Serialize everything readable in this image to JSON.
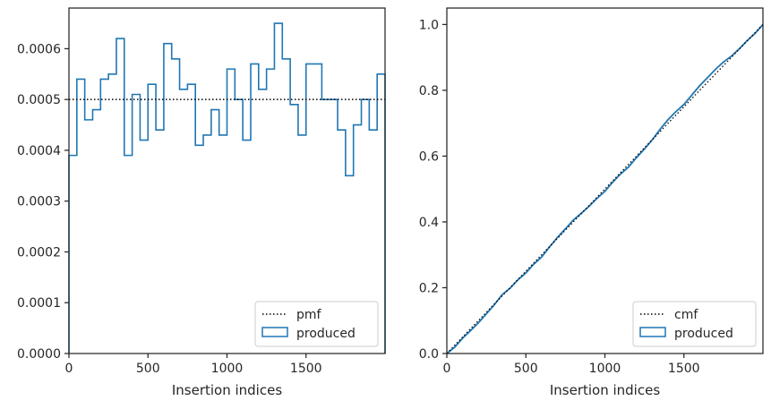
{
  "chart_data": [
    {
      "type": "histogram",
      "xlabel": "Insertion indices",
      "ylabel": "",
      "xlim": [
        0,
        2000
      ],
      "ylim": [
        0,
        0.00068
      ],
      "xticks": [
        0,
        500,
        1000,
        1500
      ],
      "xtick_labels": [
        "0",
        "500",
        "1000",
        "1500"
      ],
      "yticks": [
        0,
        0.0001,
        0.0002,
        0.0003,
        0.0004,
        0.0005,
        0.0006
      ],
      "ytick_labels": [
        "0.0000",
        "0.0001",
        "0.0002",
        "0.0003",
        "0.0004",
        "0.0005",
        "0.0006"
      ],
      "grid": false,
      "legend": {
        "placement": "lower right",
        "entries": [
          {
            "label": "pmf",
            "style": "dotted-line",
            "color": "#000000"
          },
          {
            "label": "produced",
            "style": "step-outline",
            "color": "#1f77b4"
          }
        ]
      },
      "reference_line": {
        "name": "pmf",
        "y": 0.0005
      },
      "series": [
        {
          "name": "produced",
          "color": "#1f77b4",
          "bin_edges": [
            0,
            50,
            100,
            150,
            200,
            250,
            300,
            350,
            400,
            450,
            500,
            550,
            600,
            650,
            700,
            750,
            800,
            850,
            900,
            950,
            1000,
            1050,
            1100,
            1150,
            1200,
            1250,
            1300,
            1350,
            1400,
            1450,
            1500,
            1550,
            1600,
            1650,
            1700,
            1750,
            1800,
            1850,
            1900,
            1950,
            2000
          ],
          "values": [
            0.00039,
            0.00054,
            0.00046,
            0.00048,
            0.00054,
            0.00055,
            0.00062,
            0.00039,
            0.00051,
            0.00042,
            0.00053,
            0.00044,
            0.00061,
            0.00058,
            0.00052,
            0.00053,
            0.00041,
            0.00043,
            0.00048,
            0.00043,
            0.00056,
            0.0005,
            0.00042,
            0.00057,
            0.00052,
            0.00056,
            0.00065,
            0.00058,
            0.00049,
            0.00043,
            0.00057,
            0.00057,
            0.0005,
            0.0005,
            0.00044,
            0.00035,
            0.00045,
            0.0005,
            0.00044,
            0.00055
          ]
        }
      ]
    },
    {
      "type": "line",
      "xlabel": "Insertion indices",
      "ylabel": "",
      "xlim": [
        0,
        2000
      ],
      "ylim": [
        0,
        1.05
      ],
      "xticks": [
        0,
        500,
        1000,
        1500
      ],
      "xtick_labels": [
        "0",
        "500",
        "1000",
        "1500"
      ],
      "yticks": [
        0,
        0.2,
        0.4,
        0.6,
        0.8,
        1.0
      ],
      "ytick_labels": [
        "0.0",
        "0.2",
        "0.4",
        "0.6",
        "0.8",
        "1.0"
      ],
      "grid": false,
      "legend": {
        "placement": "lower right",
        "entries": [
          {
            "label": "cmf",
            "style": "dotted-line",
            "color": "#000000"
          },
          {
            "label": "produced",
            "style": "step-outline",
            "color": "#1f77b4"
          }
        ]
      },
      "reference_line": {
        "name": "cmf",
        "points": [
          [
            0,
            0
          ],
          [
            2000,
            1.0
          ]
        ]
      },
      "series": [
        {
          "name": "produced",
          "color": "#1f77b4",
          "x": [
            0,
            50,
            100,
            150,
            200,
            250,
            300,
            350,
            400,
            450,
            500,
            550,
            600,
            650,
            700,
            750,
            800,
            850,
            900,
            950,
            1000,
            1050,
            1100,
            1150,
            1200,
            1250,
            1300,
            1350,
            1400,
            1450,
            1500,
            1550,
            1600,
            1650,
            1700,
            1750,
            1800,
            1850,
            1900,
            1950,
            2000
          ],
          "y": [
            0,
            0.0195,
            0.0465,
            0.0695,
            0.0935,
            0.1205,
            0.148,
            0.179,
            0.1985,
            0.224,
            0.245,
            0.2715,
            0.2935,
            0.324,
            0.353,
            0.379,
            0.4055,
            0.426,
            0.4475,
            0.4715,
            0.493,
            0.521,
            0.546,
            0.567,
            0.5955,
            0.6215,
            0.6495,
            0.682,
            0.711,
            0.7355,
            0.757,
            0.7855,
            0.814,
            0.839,
            0.864,
            0.886,
            0.9035,
            0.926,
            0.951,
            0.973,
            1.0
          ]
        }
      ]
    }
  ]
}
